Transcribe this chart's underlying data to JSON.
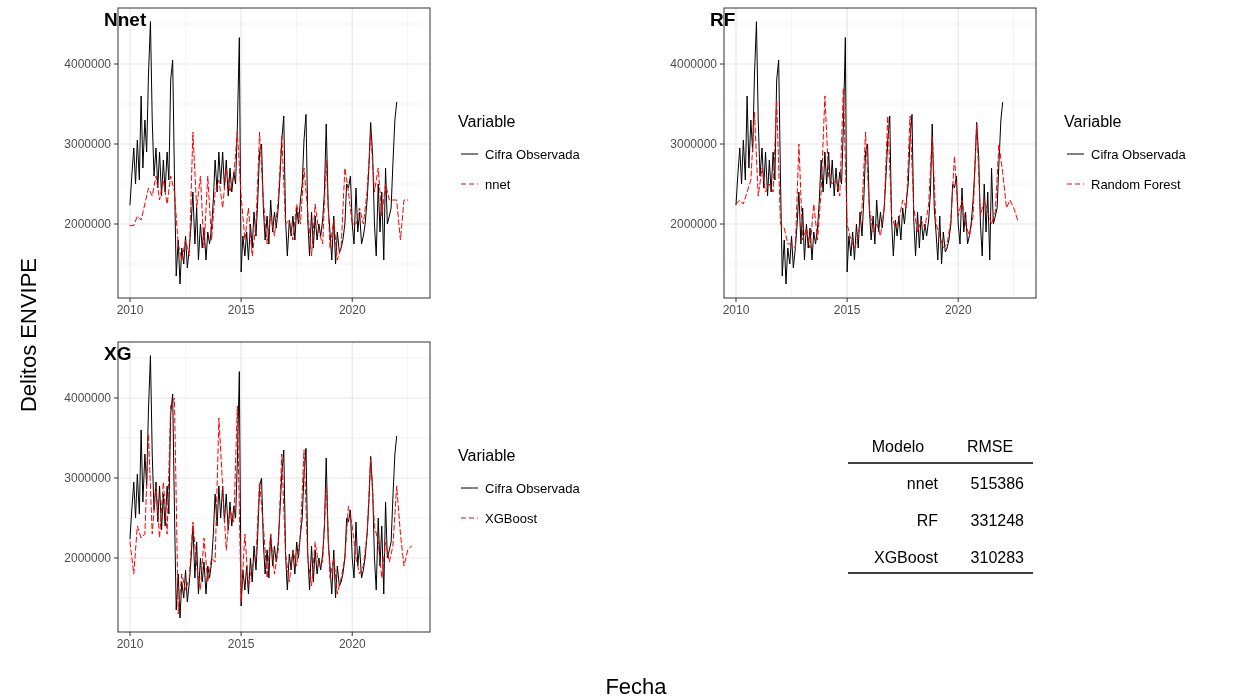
{
  "chart_data": [
    {
      "type": "line",
      "title": "Nnet",
      "ylabel": "Delitos ENVIPE",
      "legend_title": "Variable",
      "legend": "right",
      "grid": true,
      "xlim": [
        2009.46,
        2023.5
      ],
      "ylim": [
        1075000,
        4700000
      ],
      "xticks": [
        2010,
        2015,
        2020
      ],
      "yticks": [
        2000000,
        3000000,
        4000000
      ],
      "series": [
        {
          "name": "Cifra Observada",
          "color": "#000000",
          "line_style": "solid",
          "x": [
            2010,
            2010.08,
            2010.17,
            2010.25,
            2010.33,
            2010.42,
            2010.5,
            2010.58,
            2010.67,
            2010.75,
            2010.83,
            2010.92,
            2011,
            2011.08,
            2011.17,
            2011.25,
            2011.33,
            2011.42,
            2011.5,
            2011.58,
            2011.67,
            2011.75,
            2011.83,
            2011.92,
            2012,
            2012.08,
            2012.17,
            2012.25,
            2012.33,
            2012.42,
            2012.5,
            2012.58,
            2012.67,
            2012.75,
            2012.83,
            2012.92,
            2013,
            2013.08,
            2013.17,
            2013.25,
            2013.33,
            2013.42,
            2013.5,
            2013.58,
            2013.67,
            2013.75,
            2013.83,
            2013.92,
            2014,
            2014.08,
            2014.17,
            2014.25,
            2014.33,
            2014.42,
            2014.5,
            2014.58,
            2014.67,
            2014.75,
            2014.83,
            2014.92,
            2015,
            2015.08,
            2015.17,
            2015.25,
            2015.33,
            2015.42,
            2015.5,
            2015.58,
            2015.67,
            2015.75,
            2015.83,
            2015.92,
            2016,
            2016.08,
            2016.17,
            2016.25,
            2016.33,
            2016.42,
            2016.5,
            2016.58,
            2016.67,
            2016.75,
            2016.83,
            2016.92,
            2017,
            2017.08,
            2017.17,
            2017.25,
            2017.33,
            2017.42,
            2017.5,
            2017.58,
            2017.67,
            2017.75,
            2017.83,
            2017.92,
            2018,
            2018.08,
            2018.17,
            2018.25,
            2018.33,
            2018.42,
            2018.5,
            2018.58,
            2018.67,
            2018.75,
            2018.83,
            2018.92,
            2019,
            2019.08,
            2019.17,
            2019.25,
            2019.33,
            2019.42,
            2019.5,
            2019.58,
            2019.67,
            2019.75,
            2019.83,
            2019.92,
            2020,
            2020.08,
            2020.17,
            2020.25,
            2020.33,
            2020.42,
            2020.5,
            2020.58,
            2020.67,
            2020.75,
            2020.83,
            2020.92,
            2021,
            2021.08,
            2021.17,
            2021.25,
            2021.33,
            2021.42,
            2021.5,
            2021.58,
            2021.67,
            2021.75,
            2021.83,
            2021.92,
            2022
          ],
          "values": [
            2240000,
            2600000,
            2950000,
            2500000,
            3050000,
            2550000,
            3600000,
            2700000,
            3300000,
            2900000,
            3850000,
            4530000,
            3300000,
            2600000,
            2950000,
            2450000,
            2900000,
            2350000,
            2800000,
            2400000,
            2900000,
            2550000,
            3800000,
            4050000,
            2600000,
            1350000,
            1800000,
            1250000,
            1700000,
            1500000,
            1850000,
            1450000,
            1700000,
            2000000,
            2400000,
            1750000,
            2200000,
            1550000,
            2000000,
            1700000,
            1950000,
            1550000,
            1900000,
            1750000,
            1950000,
            2300000,
            2800000,
            2400000,
            2900000,
            2500000,
            2900000,
            2450000,
            2800000,
            2350000,
            2700000,
            2400000,
            2650000,
            2500000,
            3200000,
            4330000,
            1400000,
            1850000,
            1600000,
            1900000,
            1550000,
            2000000,
            1700000,
            2150000,
            1850000,
            2300000,
            2900000,
            3000000,
            2200000,
            1800000,
            2100000,
            1750000,
            2300000,
            1900000,
            2150000,
            1950000,
            2200000,
            2600000,
            3050000,
            3350000,
            2050000,
            1600000,
            2050000,
            1850000,
            2100000,
            1800000,
            2200000,
            2000000,
            2300000,
            2500000,
            3050000,
            3370000,
            2050000,
            1600000,
            2150000,
            1700000,
            2100000,
            1800000,
            2000000,
            1850000,
            2050000,
            2400000,
            3250000,
            2200000,
            1900000,
            1550000,
            2100000,
            1500000,
            1900000,
            1650000,
            1700000,
            1800000,
            2000000,
            2500000,
            2450000,
            2600000,
            2000000,
            1750000,
            2450000,
            1900000,
            2150000,
            1750000,
            1850000,
            2000000,
            2300000,
            2700000,
            3270000,
            2850000,
            2000000,
            1600000,
            2500000,
            1900000,
            2400000,
            1550000,
            2700000,
            2000000,
            2100000,
            2200000,
            2750000,
            3300000,
            3520000
          ]
        },
        {
          "name": "nnet",
          "color": "#ff0000",
          "line_style": "dashed",
          "x": [
            2010,
            2010.17,
            2010.33,
            2010.5,
            2010.67,
            2010.83,
            2011,
            2011.17,
            2011.33,
            2011.5,
            2011.67,
            2011.83,
            2012,
            2012.17,
            2012.33,
            2012.5,
            2012.67,
            2012.83,
            2013,
            2013.17,
            2013.33,
            2013.5,
            2013.67,
            2013.83,
            2014,
            2014.17,
            2014.33,
            2014.5,
            2014.67,
            2014.83,
            2015,
            2015.17,
            2015.33,
            2015.5,
            2015.67,
            2015.83,
            2016,
            2016.17,
            2016.33,
            2016.5,
            2016.67,
            2016.83,
            2017,
            2017.17,
            2017.33,
            2017.5,
            2017.67,
            2017.83,
            2018,
            2018.17,
            2018.33,
            2018.5,
            2018.67,
            2018.83,
            2019,
            2019.17,
            2019.33,
            2019.5,
            2019.67,
            2019.83,
            2020,
            2020.17,
            2020.33,
            2020.5,
            2020.67,
            2020.83,
            2021,
            2021.17,
            2021.33,
            2021.5,
            2021.67,
            2021.83,
            2022,
            2022.17,
            2022.33,
            2022.5
          ],
          "values": [
            1980000,
            1980000,
            2100000,
            2050000,
            2250000,
            2450000,
            2350000,
            2600000,
            2300000,
            2550000,
            2250000,
            2600000,
            2400000,
            1750000,
            1550000,
            1800000,
            1600000,
            3150000,
            2200000,
            2600000,
            1700000,
            2600000,
            1800000,
            2400000,
            2550000,
            2200000,
            2700000,
            2400000,
            2600000,
            3150000,
            2350000,
            1800000,
            2200000,
            1600000,
            2000000,
            3150000,
            2300000,
            1750000,
            2100000,
            1850000,
            2300000,
            3100000,
            2000000,
            2050000,
            1800000,
            2250000,
            2000000,
            2700000,
            2150000,
            1600000,
            2250000,
            1900000,
            1750000,
            2800000,
            1700000,
            2050000,
            1550000,
            1700000,
            2700000,
            2400000,
            2000000,
            2000000,
            2200000,
            2000000,
            2400000,
            3150000,
            2400000,
            2700000,
            2100000,
            2500000,
            2300000,
            2300000,
            2300000,
            1800000,
            2300000,
            2300000
          ]
        }
      ]
    },
    {
      "type": "line",
      "title": "RF",
      "legend_title": "Variable",
      "legend": "right",
      "grid": true,
      "xlim": [
        2009.46,
        2023.5
      ],
      "ylim": [
        1075000,
        4700000
      ],
      "xticks": [
        2010,
        2015,
        2020
      ],
      "yticks": [
        2000000,
        3000000,
        4000000
      ],
      "series": [
        {
          "name": "Cifra Observada",
          "color": "#000000",
          "line_style": "solid",
          "x": [
            2010,
            2010.08,
            2010.17,
            2010.25,
            2010.33,
            2010.42,
            2010.5,
            2010.58,
            2010.67,
            2010.75,
            2010.83,
            2010.92,
            2011,
            2011.08,
            2011.17,
            2011.25,
            2011.33,
            2011.42,
            2011.5,
            2011.58,
            2011.67,
            2011.75,
            2011.83,
            2011.92,
            2012,
            2012.08,
            2012.17,
            2012.25,
            2012.33,
            2012.42,
            2012.5,
            2012.58,
            2012.67,
            2012.75,
            2012.83,
            2012.92,
            2013,
            2013.08,
            2013.17,
            2013.25,
            2013.33,
            2013.42,
            2013.5,
            2013.58,
            2013.67,
            2013.75,
            2013.83,
            2013.92,
            2014,
            2014.08,
            2014.17,
            2014.25,
            2014.33,
            2014.42,
            2014.5,
            2014.58,
            2014.67,
            2014.75,
            2014.83,
            2014.92,
            2015,
            2015.08,
            2015.17,
            2015.25,
            2015.33,
            2015.42,
            2015.5,
            2015.58,
            2015.67,
            2015.75,
            2015.83,
            2015.92,
            2016,
            2016.08,
            2016.17,
            2016.25,
            2016.33,
            2016.42,
            2016.5,
            2016.58,
            2016.67,
            2016.75,
            2016.83,
            2016.92,
            2017,
            2017.08,
            2017.17,
            2017.25,
            2017.33,
            2017.42,
            2017.5,
            2017.58,
            2017.67,
            2017.75,
            2017.83,
            2017.92,
            2018,
            2018.08,
            2018.17,
            2018.25,
            2018.33,
            2018.42,
            2018.5,
            2018.58,
            2018.67,
            2018.75,
            2018.83,
            2018.92,
            2019,
            2019.08,
            2019.17,
            2019.25,
            2019.33,
            2019.42,
            2019.5,
            2019.58,
            2019.67,
            2019.75,
            2019.83,
            2019.92,
            2020,
            2020.08,
            2020.17,
            2020.25,
            2020.33,
            2020.42,
            2020.5,
            2020.58,
            2020.67,
            2020.75,
            2020.83,
            2020.92,
            2021,
            2021.08,
            2021.17,
            2021.25,
            2021.33,
            2021.42,
            2021.5,
            2021.58,
            2021.67,
            2021.75,
            2021.83,
            2021.92,
            2022
          ],
          "values": [
            2240000,
            2600000,
            2950000,
            2500000,
            3050000,
            2550000,
            3600000,
            2700000,
            3300000,
            2900000,
            3850000,
            4530000,
            3300000,
            2600000,
            2950000,
            2450000,
            2900000,
            2350000,
            2800000,
            2400000,
            2900000,
            2550000,
            3800000,
            4050000,
            2600000,
            1350000,
            1800000,
            1250000,
            1700000,
            1500000,
            1850000,
            1450000,
            1700000,
            2000000,
            2400000,
            1750000,
            2200000,
            1550000,
            2000000,
            1700000,
            1950000,
            1550000,
            1900000,
            1750000,
            1950000,
            2300000,
            2800000,
            2400000,
            2900000,
            2500000,
            2900000,
            2450000,
            2800000,
            2350000,
            2700000,
            2400000,
            2650000,
            2500000,
            3200000,
            4330000,
            1400000,
            1850000,
            1600000,
            1900000,
            1550000,
            2000000,
            1700000,
            2150000,
            1850000,
            2300000,
            2900000,
            3000000,
            2200000,
            1800000,
            2100000,
            1750000,
            2300000,
            1900000,
            2150000,
            1950000,
            2200000,
            2600000,
            3050000,
            3350000,
            2050000,
            1600000,
            2050000,
            1850000,
            2100000,
            1800000,
            2200000,
            2000000,
            2300000,
            2500000,
            3050000,
            3370000,
            2050000,
            1600000,
            2150000,
            1700000,
            2100000,
            1800000,
            2000000,
            1850000,
            2050000,
            2400000,
            3250000,
            2200000,
            1900000,
            1550000,
            2100000,
            1500000,
            1900000,
            1650000,
            1700000,
            1800000,
            2000000,
            2500000,
            2450000,
            2600000,
            2000000,
            1750000,
            2450000,
            1900000,
            2150000,
            1750000,
            1850000,
            2000000,
            2300000,
            2700000,
            3270000,
            2850000,
            2000000,
            1600000,
            2500000,
            1900000,
            2400000,
            1550000,
            2700000,
            2000000,
            2100000,
            2200000,
            2750000,
            3300000,
            3520000
          ]
        },
        {
          "name": "Random Forest",
          "color": "#ff0000",
          "line_style": "dashed",
          "x": [
            2010,
            2010.17,
            2010.33,
            2010.5,
            2010.67,
            2010.83,
            2011,
            2011.17,
            2011.33,
            2011.5,
            2011.67,
            2011.83,
            2012,
            2012.17,
            2012.33,
            2012.5,
            2012.67,
            2012.83,
            2013,
            2013.17,
            2013.33,
            2013.5,
            2013.67,
            2013.83,
            2014,
            2014.17,
            2014.33,
            2014.5,
            2014.67,
            2014.83,
            2015,
            2015.17,
            2015.33,
            2015.5,
            2015.67,
            2015.83,
            2016,
            2016.17,
            2016.33,
            2016.5,
            2016.67,
            2016.83,
            2017,
            2017.17,
            2017.33,
            2017.5,
            2017.67,
            2017.83,
            2018,
            2018.17,
            2018.33,
            2018.5,
            2018.67,
            2018.83,
            2019,
            2019.17,
            2019.33,
            2019.5,
            2019.67,
            2019.83,
            2020,
            2020.17,
            2020.33,
            2020.5,
            2020.67,
            2020.83,
            2021,
            2021.17,
            2021.33,
            2021.5,
            2021.67,
            2021.83,
            2022,
            2022.17,
            2022.33,
            2022.5,
            2022.67
          ],
          "values": [
            2250000,
            2300000,
            2250000,
            2400000,
            2550000,
            3400000,
            2350000,
            2700000,
            2400000,
            2500000,
            2400000,
            3550000,
            2000000,
            1950000,
            1750000,
            1750000,
            1700000,
            3000000,
            1800000,
            1950000,
            1700000,
            2250000,
            1800000,
            2400000,
            3600000,
            2600000,
            2500000,
            2550000,
            2350000,
            3700000,
            2000000,
            1800000,
            1700000,
            1850000,
            2200000,
            3150000,
            2200000,
            1900000,
            2000000,
            1850000,
            2200000,
            3350000,
            2100000,
            1950000,
            2050000,
            2300000,
            2200000,
            3350000,
            2200000,
            1900000,
            2050000,
            1950000,
            2250000,
            3100000,
            2000000,
            1850000,
            1700000,
            1750000,
            2050000,
            2850000,
            2100000,
            2300000,
            2000000,
            1850000,
            2100000,
            3250000,
            2100000,
            2300000,
            2150000,
            2000000,
            2150000,
            3000000,
            2650000,
            2200000,
            2300000,
            2200000,
            2050000
          ]
        }
      ]
    },
    {
      "type": "line",
      "title": "XG",
      "legend_title": "Variable",
      "legend": "right",
      "grid": true,
      "xlim": [
        2009.46,
        2023.5
      ],
      "ylim": [
        1075000,
        4700000
      ],
      "xticks": [
        2010,
        2015,
        2020
      ],
      "yticks": [
        2000000,
        3000000,
        4000000
      ],
      "series": [
        {
          "name": "Cifra Observada",
          "color": "#000000",
          "line_style": "solid",
          "x": [
            2010,
            2010.08,
            2010.17,
            2010.25,
            2010.33,
            2010.42,
            2010.5,
            2010.58,
            2010.67,
            2010.75,
            2010.83,
            2010.92,
            2011,
            2011.08,
            2011.17,
            2011.25,
            2011.33,
            2011.42,
            2011.5,
            2011.58,
            2011.67,
            2011.75,
            2011.83,
            2011.92,
            2012,
            2012.08,
            2012.17,
            2012.25,
            2012.33,
            2012.42,
            2012.5,
            2012.58,
            2012.67,
            2012.75,
            2012.83,
            2012.92,
            2013,
            2013.08,
            2013.17,
            2013.25,
            2013.33,
            2013.42,
            2013.5,
            2013.58,
            2013.67,
            2013.75,
            2013.83,
            2013.92,
            2014,
            2014.08,
            2014.17,
            2014.25,
            2014.33,
            2014.42,
            2014.5,
            2014.58,
            2014.67,
            2014.75,
            2014.83,
            2014.92,
            2015,
            2015.08,
            2015.17,
            2015.25,
            2015.33,
            2015.42,
            2015.5,
            2015.58,
            2015.67,
            2015.75,
            2015.83,
            2015.92,
            2016,
            2016.08,
            2016.17,
            2016.25,
            2016.33,
            2016.42,
            2016.5,
            2016.58,
            2016.67,
            2016.75,
            2016.83,
            2016.92,
            2017,
            2017.08,
            2017.17,
            2017.25,
            2017.33,
            2017.42,
            2017.5,
            2017.58,
            2017.67,
            2017.75,
            2017.83,
            2017.92,
            2018,
            2018.08,
            2018.17,
            2018.25,
            2018.33,
            2018.42,
            2018.5,
            2018.58,
            2018.67,
            2018.75,
            2018.83,
            2018.92,
            2019,
            2019.08,
            2019.17,
            2019.25,
            2019.33,
            2019.42,
            2019.5,
            2019.58,
            2019.67,
            2019.75,
            2019.83,
            2019.92,
            2020,
            2020.08,
            2020.17,
            2020.25,
            2020.33,
            2020.42,
            2020.5,
            2020.58,
            2020.67,
            2020.75,
            2020.83,
            2020.92,
            2021,
            2021.08,
            2021.17,
            2021.25,
            2021.33,
            2021.42,
            2021.5,
            2021.58,
            2021.67,
            2021.75,
            2021.83,
            2021.92,
            2022
          ],
          "values": [
            2240000,
            2600000,
            2950000,
            2500000,
            3050000,
            2550000,
            3600000,
            2700000,
            3300000,
            2900000,
            3850000,
            4530000,
            3300000,
            2600000,
            2950000,
            2450000,
            2900000,
            2350000,
            2800000,
            2400000,
            2900000,
            2550000,
            3800000,
            4050000,
            2600000,
            1350000,
            1800000,
            1250000,
            1700000,
            1500000,
            1850000,
            1450000,
            1700000,
            2000000,
            2400000,
            1750000,
            2200000,
            1550000,
            2000000,
            1700000,
            1950000,
            1550000,
            1900000,
            1750000,
            1950000,
            2300000,
            2800000,
            2400000,
            2900000,
            2500000,
            2900000,
            2450000,
            2800000,
            2350000,
            2700000,
            2400000,
            2650000,
            2500000,
            3200000,
            4330000,
            1400000,
            1850000,
            1600000,
            1900000,
            1550000,
            2000000,
            1700000,
            2150000,
            1850000,
            2300000,
            2900000,
            3000000,
            2200000,
            1800000,
            2100000,
            1750000,
            2300000,
            1900000,
            2150000,
            1950000,
            2200000,
            2600000,
            3050000,
            3350000,
            2050000,
            1600000,
            2050000,
            1850000,
            2100000,
            1800000,
            2200000,
            2000000,
            2300000,
            2500000,
            3050000,
            3370000,
            2050000,
            1600000,
            2150000,
            1700000,
            2100000,
            1800000,
            2000000,
            1850000,
            2050000,
            2400000,
            3250000,
            2200000,
            1900000,
            1550000,
            2100000,
            1500000,
            1900000,
            1650000,
            1700000,
            1800000,
            2000000,
            2500000,
            2450000,
            2600000,
            2000000,
            1750000,
            2450000,
            1900000,
            2150000,
            1750000,
            1850000,
            2000000,
            2300000,
            2700000,
            3270000,
            2850000,
            2000000,
            1600000,
            2500000,
            1900000,
            2400000,
            1550000,
            2700000,
            2000000,
            2100000,
            2200000,
            2750000,
            3300000,
            3520000
          ]
        },
        {
          "name": "XGBoost",
          "color": "#ff0000",
          "line_style": "dashed",
          "x": [
            2010,
            2010.17,
            2010.33,
            2010.5,
            2010.67,
            2010.83,
            2011,
            2011.17,
            2011.33,
            2011.5,
            2011.67,
            2011.83,
            2012,
            2012.17,
            2012.33,
            2012.5,
            2012.67,
            2012.83,
            2013,
            2013.17,
            2013.33,
            2013.5,
            2013.67,
            2013.83,
            2014,
            2014.17,
            2014.33,
            2014.5,
            2014.67,
            2014.83,
            2015,
            2015.17,
            2015.33,
            2015.5,
            2015.67,
            2015.83,
            2016,
            2016.17,
            2016.33,
            2016.5,
            2016.67,
            2016.83,
            2017,
            2017.17,
            2017.33,
            2017.5,
            2017.67,
            2017.83,
            2018,
            2018.17,
            2018.33,
            2018.5,
            2018.67,
            2018.83,
            2019,
            2019.17,
            2019.33,
            2019.5,
            2019.67,
            2019.83,
            2020,
            2020.17,
            2020.33,
            2020.5,
            2020.67,
            2020.83,
            2021,
            2021.17,
            2021.33,
            2021.5,
            2021.67,
            2021.83,
            2022,
            2022.17,
            2022.33,
            2022.5,
            2022.67
          ],
          "values": [
            2200000,
            1800000,
            2400000,
            2250000,
            2300000,
            3550000,
            2300000,
            2900000,
            2250000,
            2950000,
            2300000,
            3900000,
            4000000,
            1300000,
            1800000,
            1600000,
            1750000,
            2450000,
            1900000,
            1600000,
            2250000,
            1700000,
            2000000,
            1950000,
            3750000,
            2900000,
            2100000,
            2600000,
            2450000,
            3900000,
            1450000,
            2300000,
            1650000,
            1900000,
            2000000,
            2950000,
            2400000,
            1750000,
            2300000,
            1800000,
            2100000,
            3300000,
            2050000,
            1700000,
            2100000,
            1900000,
            2300000,
            3350000,
            2000000,
            1650000,
            2200000,
            1900000,
            1950000,
            2900000,
            1750000,
            2000000,
            1550000,
            1750000,
            2000000,
            2650000,
            2400000,
            2000000,
            1800000,
            1900000,
            2300000,
            3250000,
            2400000,
            2200000,
            1750000,
            2200000,
            1950000,
            2150000,
            2900000,
            2300000,
            1900000,
            2100000,
            2150000
          ]
        }
      ]
    },
    {
      "type": "other",
      "title": "Fecha",
      "xlabel": "Modelo",
      "ylabel": "RMSE",
      "categories": [
        "nnet",
        "RF",
        "XGBoost"
      ],
      "values": [
        515386,
        331248,
        310283
      ],
      "data_labels": true
    }
  ]
}
